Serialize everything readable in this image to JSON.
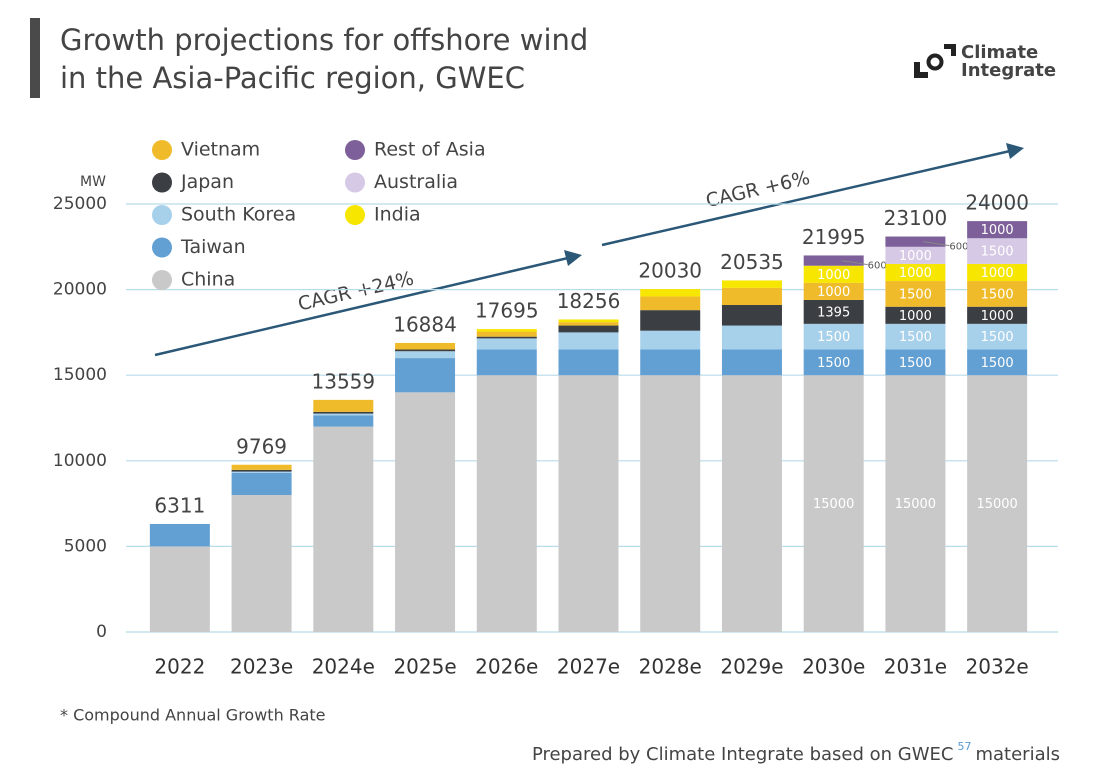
{
  "title": [
    "Growth projections for offshore wind",
    "in the Asia-Pacific region, GWEC"
  ],
  "logo": [
    "Climate",
    "Integrate"
  ],
  "footnote": "* Compound Annual Growth Rate",
  "source": [
    "Prepared by Climate Integrate based on GWEC",
    "57",
    "materials"
  ],
  "chart_data": {
    "type": "stacked_bar",
    "y_axis_label": "MW",
    "categories": [
      "2022",
      "2023e",
      "2024e",
      "2025e",
      "2026e",
      "2027e",
      "2028e",
      "2029e",
      "2030e",
      "2031e",
      "2032e"
    ],
    "totals": [
      6311,
      9769,
      13559,
      16884,
      17695,
      18256,
      20030,
      20535,
      21995,
      23100,
      24000
    ],
    "series": [
      {
        "name": "China",
        "color": "#c9c9c9",
        "values": [
          5000,
          8000,
          12000,
          14000,
          15000,
          15000,
          15000,
          15000,
          15000,
          15000,
          15000
        ]
      },
      {
        "name": "Taiwan",
        "color": "#629fd2",
        "values": [
          1311,
          1300,
          650,
          2000,
          1500,
          1500,
          1500,
          1500,
          1500,
          1500,
          1500
        ]
      },
      {
        "name": "South Korea",
        "color": "#a7d0ea",
        "values": [
          0,
          69,
          110,
          400,
          650,
          1000,
          1100,
          1400,
          1500,
          1500,
          1500
        ]
      },
      {
        "name": "Japan",
        "color": "#3b3e42",
        "values": [
          0,
          100,
          100,
          100,
          100,
          400,
          1200,
          1200,
          1395,
          1000,
          1000
        ]
      },
      {
        "name": "Vietnam",
        "color": "#f0bb2b",
        "values": [
          0,
          300,
          699,
          384,
          300,
          200,
          800,
          1000,
          1000,
          1500,
          1500
        ]
      },
      {
        "name": "India",
        "color": "#f6e600",
        "values": [
          0,
          0,
          0,
          0,
          145,
          156,
          430,
          435,
          1000,
          1000,
          1000
        ]
      },
      {
        "name": "Australia",
        "color": "#d6c9e5",
        "values": [
          0,
          0,
          0,
          0,
          0,
          0,
          0,
          0,
          0,
          1000,
          1500
        ]
      },
      {
        "name": "Rest of Asia",
        "color": "#7d6099",
        "values": [
          0,
          0,
          0,
          0,
          0,
          0,
          0,
          0,
          600,
          600,
          1000
        ]
      }
    ],
    "ylim": [
      0,
      25000
    ],
    "yticks": [
      0,
      5000,
      10000,
      15000,
      20000,
      25000
    ],
    "grid": true,
    "annotations": [
      "CAGR +24%",
      "CAGR +6%"
    ]
  }
}
